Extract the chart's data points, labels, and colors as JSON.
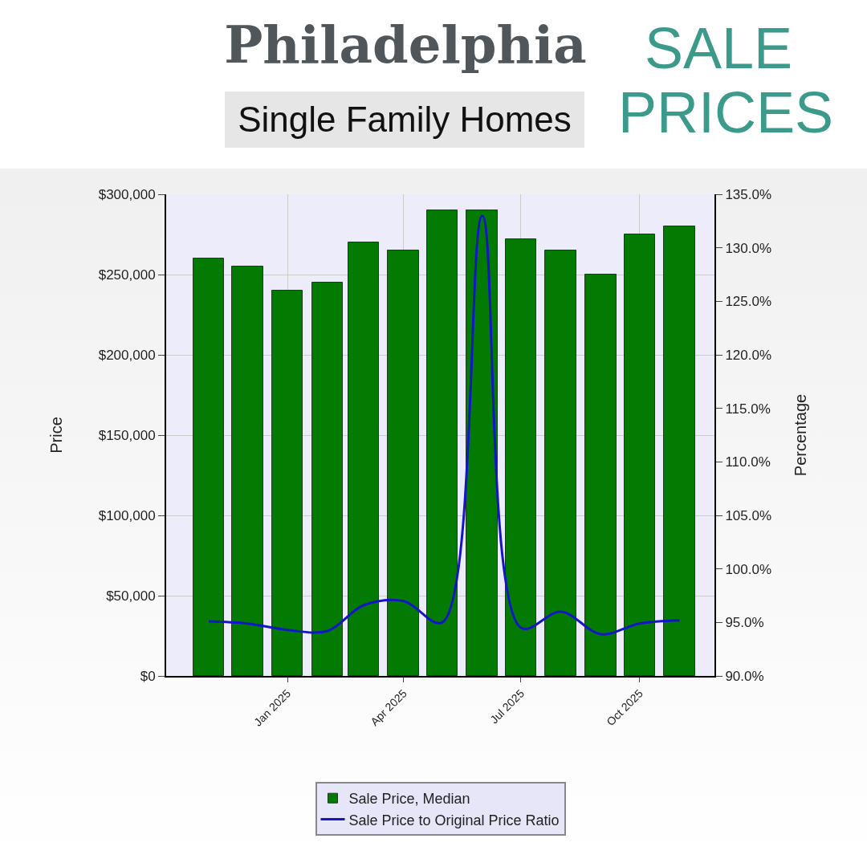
{
  "chart_data": {
    "type": "bar",
    "title": "Philadelphia",
    "subtitle": "Single Family Homes",
    "annotations": [
      "SALE PRICES"
    ],
    "ylabel": "Price",
    "y2label": "Percentage",
    "x": [
      "2024-11",
      "2024-12",
      "2025-01",
      "2025-02",
      "2025-03",
      "2025-04",
      "2025-05",
      "2025-06",
      "2025-07",
      "2025-08",
      "2025-09",
      "2025-10",
      "2025-11"
    ],
    "series": [
      {
        "name": "Sale Price, Median",
        "color": "#037b03",
        "values": [
          260000,
          255000,
          240000,
          245000,
          270000,
          265000,
          290000,
          290000,
          272000,
          265000,
          250000,
          275000,
          280000
        ]
      },
      {
        "name": "Sale Price to Original Price Ratio",
        "type": "line",
        "axis": "y2",
        "color": "#1414c8",
        "values": [
          95.1,
          94.9,
          94.3,
          94.2,
          96.6,
          97.0,
          95.0,
          133.0,
          94.5,
          96.0,
          93.9,
          94.9,
          95.2
        ]
      }
    ],
    "xlim": [
      "2024-09-29",
      "2025-11-28"
    ],
    "xticks": [
      {
        "value": "2025-01",
        "label": "Jan 2025"
      },
      {
        "value": "2025-04",
        "label": "Apr 2025"
      },
      {
        "value": "2025-07",
        "label": "Jul 2025"
      },
      {
        "value": "2025-10",
        "label": "Oct 2025"
      }
    ],
    "ylim": [
      0,
      300000
    ],
    "yticks": [
      {
        "value": 0,
        "label": "$0"
      },
      {
        "value": 50000,
        "label": "$50,000"
      },
      {
        "value": 100000,
        "label": "$100,000"
      },
      {
        "value": 150000,
        "label": "$150,000"
      },
      {
        "value": 200000,
        "label": "$200,000"
      },
      {
        "value": 250000,
        "label": "$250,000"
      },
      {
        "value": 300000,
        "label": "$300,000"
      }
    ],
    "y2lim": [
      90,
      135
    ],
    "y2ticks": [
      {
        "value": 90,
        "label": "90.0%"
      },
      {
        "value": 95,
        "label": "95.0%"
      },
      {
        "value": 100,
        "label": "100.0%"
      },
      {
        "value": 105,
        "label": "105.0%"
      },
      {
        "value": 110,
        "label": "110.0%"
      },
      {
        "value": 115,
        "label": "115.0%"
      },
      {
        "value": 120,
        "label": "120.0%"
      },
      {
        "value": 125,
        "label": "125.0%"
      },
      {
        "value": 130,
        "label": "130.0%"
      },
      {
        "value": 135,
        "label": "135.0%"
      }
    ],
    "grid": true,
    "legend": "bottom",
    "line_style": "solid",
    "marker": "none"
  }
}
